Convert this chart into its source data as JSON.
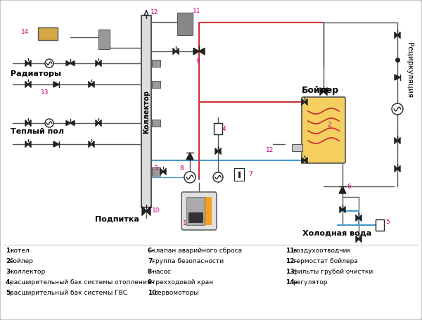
{
  "bg_color": "#f5f5f5",
  "border_color": "#bbbbbb",
  "legend_items": [
    "1-котел",
    "2-бойлер",
    "3-коллектор",
    "4-расширительный бак системы отопления",
    "5-расширительный бак системы ГВС",
    "6-клапан аварийного сброса",
    "7-группа безопасности",
    "8-насос",
    "9-трехходовой кран",
    "10-сервомоторы",
    "11-воздухоотводчик",
    "12-термостат бойлера",
    "13-фильты грубой очистки",
    "14-регулятор"
  ],
  "label_radiatory": "Радиаторы",
  "label_teplyi_pol": "Теплый пол",
  "label_podpitka": "Подпитка",
  "label_kollector": "Коллектор",
  "label_boiler": "Бойлер",
  "label_cirk": "Рециркуляция",
  "label_cold": "Холодная вода",
  "red_color": "#cc3333",
  "blue_color": "#4499cc",
  "dark_color": "#222222",
  "magenta_color": "#cc0077",
  "gray_color": "#777777",
  "light_gray": "#cccccc",
  "dark_gray": "#555555",
  "kollector_color": "#dddddd",
  "boiler_fill": "#f5d060",
  "regulator_fill": "#d4a843",
  "port_gray": "#999999"
}
